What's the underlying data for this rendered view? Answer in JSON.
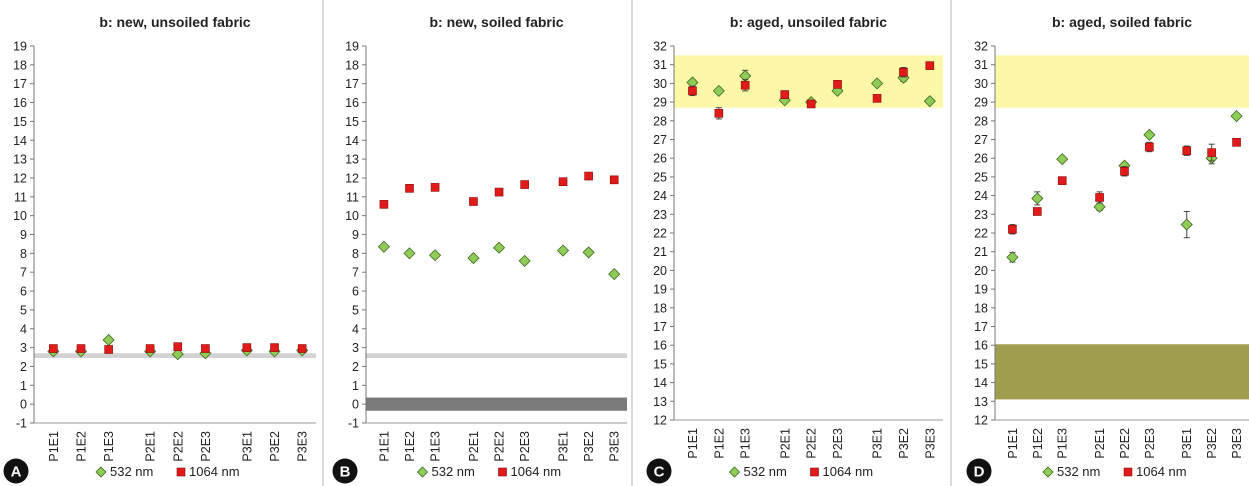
{
  "figure": {
    "colors": {
      "green": "#8fcb57",
      "green_stroke": "#3f6a22",
      "red": "#e11a1a",
      "red_stroke": "#8a0b0b",
      "yellow_band": "#fdf7a8",
      "olive_band": "#a19d4f",
      "light_gray_band": "#d2d2d2",
      "dark_gray_band": "#7a7a7a",
      "divider": "#b4b4b4",
      "badge": "#111111"
    }
  },
  "chart_data": [
    {
      "type": "scatter",
      "panel_label": "A",
      "title": "b: new, unsoiled fabric",
      "xlabel": "",
      "ylabel": "",
      "categories": [
        "P1E1",
        "P1E2",
        "P1E3",
        "P2E1",
        "P2E2",
        "P2E3",
        "P3E1",
        "P3E2",
        "P3E3"
      ],
      "ylim": [
        -1,
        19
      ],
      "yticks": [
        -1,
        0,
        1,
        2,
        3,
        4,
        5,
        6,
        7,
        8,
        9,
        10,
        11,
        12,
        13,
        14,
        15,
        16,
        17,
        18,
        19
      ],
      "bands": [
        {
          "from": 2.45,
          "to": 2.7,
          "color": "light_gray_band"
        }
      ],
      "series": [
        {
          "name": "532 nm",
          "marker": "diamond",
          "values": [
            2.8,
            2.8,
            3.4,
            2.8,
            2.65,
            2.7,
            2.85,
            2.8,
            2.85
          ],
          "errors": [
            0.05,
            0.05,
            0.05,
            0.05,
            0.05,
            0.05,
            0.05,
            0.05,
            0.05
          ]
        },
        {
          "name": "1064 nm",
          "marker": "square",
          "values": [
            2.95,
            2.95,
            2.9,
            2.95,
            3.05,
            2.95,
            3.0,
            3.0,
            2.95
          ],
          "errors": [
            0.05,
            0.05,
            0.05,
            0.05,
            0.05,
            0.05,
            0.05,
            0.05,
            0.05
          ]
        }
      ],
      "grid": false,
      "legend": "bottom"
    },
    {
      "type": "scatter",
      "panel_label": "B",
      "title": "b: new, soiled fabric",
      "xlabel": "",
      "ylabel": "",
      "categories": [
        "P1E1",
        "P1E2",
        "P1E3",
        "P2E1",
        "P2E2",
        "P2E3",
        "P3E1",
        "P3E2",
        "P3E3"
      ],
      "ylim": [
        -1,
        19
      ],
      "yticks": [
        -1,
        0,
        1,
        2,
        3,
        4,
        5,
        6,
        7,
        8,
        9,
        10,
        11,
        12,
        13,
        14,
        15,
        16,
        17,
        18,
        19
      ],
      "bands": [
        {
          "from": 2.45,
          "to": 2.7,
          "color": "light_gray_band"
        },
        {
          "from": -0.35,
          "to": 0.35,
          "color": "dark_gray_band"
        }
      ],
      "series": [
        {
          "name": "532 nm",
          "marker": "diamond",
          "values": [
            8.35,
            8.0,
            7.9,
            7.75,
            8.3,
            7.6,
            8.15,
            8.05,
            6.9
          ],
          "errors": [
            0.05,
            0.05,
            0.05,
            0.05,
            0.05,
            0.05,
            0.05,
            0.05,
            0.05
          ]
        },
        {
          "name": "1064 nm",
          "marker": "square",
          "values": [
            10.6,
            11.45,
            11.5,
            10.75,
            11.25,
            11.65,
            11.8,
            12.1,
            11.9
          ],
          "errors": [
            0.05,
            0.05,
            0.05,
            0.05,
            0.05,
            0.05,
            0.05,
            0.05,
            0.05
          ]
        }
      ],
      "grid": false,
      "legend": "bottom"
    },
    {
      "type": "scatter",
      "panel_label": "C",
      "title": "b: aged, unsoiled fabric",
      "xlabel": "",
      "ylabel": "",
      "categories": [
        "P1E1",
        "P1E2",
        "P1E3",
        "P2E1",
        "P2E2",
        "P2E3",
        "P3E1",
        "P3E2",
        "P3E3"
      ],
      "ylim": [
        12,
        32
      ],
      "yticks": [
        12,
        13,
        14,
        15,
        16,
        17,
        18,
        19,
        20,
        21,
        22,
        23,
        24,
        25,
        26,
        27,
        28,
        29,
        30,
        31,
        32
      ],
      "bands": [
        {
          "from": 28.7,
          "to": 31.5,
          "color": "yellow_band"
        }
      ],
      "series": [
        {
          "name": "532 nm",
          "marker": "diamond",
          "values": [
            30.05,
            29.6,
            30.4,
            29.1,
            29.0,
            29.6,
            30.0,
            30.3,
            29.05
          ],
          "errors": [
            0.15,
            0.1,
            0.3,
            0.1,
            0.1,
            0.1,
            0.1,
            0.2,
            0.1
          ]
        },
        {
          "name": "1064 nm",
          "marker": "square",
          "values": [
            29.6,
            28.4,
            29.9,
            29.4,
            28.9,
            29.95,
            29.2,
            30.6,
            30.95
          ],
          "errors": [
            0.25,
            0.3,
            0.3,
            0.2,
            0.1,
            0.1,
            0.15,
            0.25,
            0.1
          ]
        }
      ],
      "grid": false,
      "legend": "bottom"
    },
    {
      "type": "scatter",
      "panel_label": "D",
      "title": "b: aged, soiled fabric",
      "xlabel": "",
      "ylabel": "",
      "categories": [
        "P1E1",
        "P1E2",
        "P1E3",
        "P2E1",
        "P2E2",
        "P2E3",
        "P3E1",
        "P3E2",
        "P3E3"
      ],
      "ylim": [
        12,
        32
      ],
      "yticks": [
        12,
        13,
        14,
        15,
        16,
        17,
        18,
        19,
        20,
        21,
        22,
        23,
        24,
        25,
        26,
        27,
        28,
        29,
        30,
        31,
        32
      ],
      "bands": [
        {
          "from": 28.7,
          "to": 31.5,
          "color": "yellow_band"
        },
        {
          "from": 13.1,
          "to": 16.05,
          "color": "olive_band"
        }
      ],
      "series": [
        {
          "name": "532 nm",
          "marker": "diamond",
          "values": [
            20.7,
            23.85,
            25.95,
            23.4,
            25.6,
            27.25,
            22.45,
            26.0,
            28.25
          ],
          "errors": [
            0.25,
            0.35,
            0.1,
            0.2,
            0.15,
            0.1,
            0.7,
            0.3,
            0.1
          ]
        },
        {
          "name": "1064 nm",
          "marker": "square",
          "values": [
            22.2,
            23.15,
            24.8,
            23.9,
            25.3,
            26.6,
            26.4,
            26.3,
            26.85
          ],
          "errors": [
            0.25,
            0.1,
            0.1,
            0.3,
            0.25,
            0.25,
            0.25,
            0.45,
            0.1
          ]
        }
      ],
      "grid": false,
      "legend": "bottom"
    }
  ]
}
